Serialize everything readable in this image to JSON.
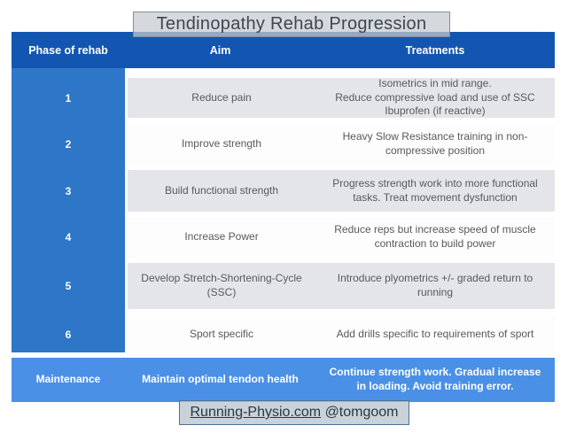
{
  "title": "Tendinopathy Rehab Progression",
  "table": {
    "headers": {
      "phase": "Phase of rehab",
      "aim": "Aim",
      "treatments": "Treatments"
    },
    "rows": [
      {
        "phase": "1",
        "aim": "Reduce pain",
        "treatments": "Isometrics in mid range.\nReduce compressive load and use of SSC\nIbuprofen (if reactive)"
      },
      {
        "phase": "2",
        "aim": "Improve strength",
        "treatments": "Heavy Slow Resistance training in non-compressive position"
      },
      {
        "phase": "3",
        "aim": "Build functional strength",
        "treatments": "Progress strength work into more functional tasks. Treat movement dysfunction"
      },
      {
        "phase": "4",
        "aim": "Increase Power",
        "treatments": "Reduce reps but increase speed of muscle contraction to build power"
      },
      {
        "phase": "5",
        "aim": "Develop Stretch-Shortening-Cycle (SSC)",
        "treatments": "Introduce plyometrics +/- graded return to running"
      },
      {
        "phase": "6",
        "aim": "Sport specific",
        "treatments": "Add drills specific to requirements of sport"
      }
    ],
    "maintenance": {
      "phase": "Maintenance",
      "aim": "Maintain optimal tendon health",
      "treatments": "Continue strength work. Gradual increase in loading. Avoid training error."
    }
  },
  "footer": {
    "link": "Running-Physio.com",
    "handle": "@tomgoom"
  },
  "colors": {
    "header_blue": "#1256b1",
    "phase_blue": "#2e76c7",
    "maintenance_blue": "#4a90e6",
    "row_gray": "#e3e5e9",
    "row_white": "#fdfdfd",
    "body_text": "#58595b",
    "title_text": "#3d4752",
    "footer_text": "#2c3844"
  }
}
